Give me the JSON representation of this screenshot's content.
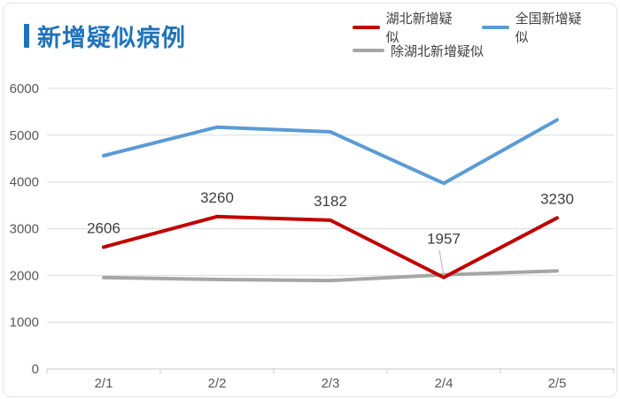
{
  "page": {
    "title": "新增疑似病例"
  },
  "legend": [
    {
      "name": "湖北新增疑似",
      "color": "#c00000"
    },
    {
      "name": "全国新增疑似",
      "color": "#5b9bd5"
    },
    {
      "name": "除湖北新增疑似",
      "color": "#a6a6a6"
    }
  ],
  "chart_data": {
    "type": "line",
    "title": "新增疑似病例",
    "categories": [
      "2/1",
      "2/2",
      "2/3",
      "2/4",
      "2/5"
    ],
    "series": [
      {
        "name": "湖北新增疑似",
        "color": "#c00000",
        "values": [
          2606,
          3260,
          3182,
          1957,
          3230
        ],
        "show_labels": true
      },
      {
        "name": "全国新增疑似",
        "color": "#5b9bd5",
        "values": [
          4562,
          5173,
          5072,
          3971,
          5328
        ],
        "show_labels": false
      },
      {
        "name": "除湖北新增疑似",
        "color": "#a6a6a6",
        "values": [
          1956,
          1913,
          1890,
          2014,
          2098
        ],
        "show_labels": false
      }
    ],
    "data_labels": [
      "2606",
      "3260",
      "3182",
      "1957",
      "3230"
    ],
    "annotations": {
      "callout": {
        "series": "湖北新增疑似",
        "category": "2/4",
        "label": "1957"
      }
    },
    "ylim": [
      0,
      6000
    ],
    "yticks": [
      0,
      1000,
      2000,
      3000,
      4000,
      5000,
      6000
    ],
    "grid": true,
    "legend_position": "top-right",
    "colors": {
      "gridline": "#dcdcdc",
      "axis_line": "#c9c9c9",
      "axis_text": "#595959",
      "data_label_text": "#404040",
      "callout_leader": "#bfbfbf"
    }
  }
}
